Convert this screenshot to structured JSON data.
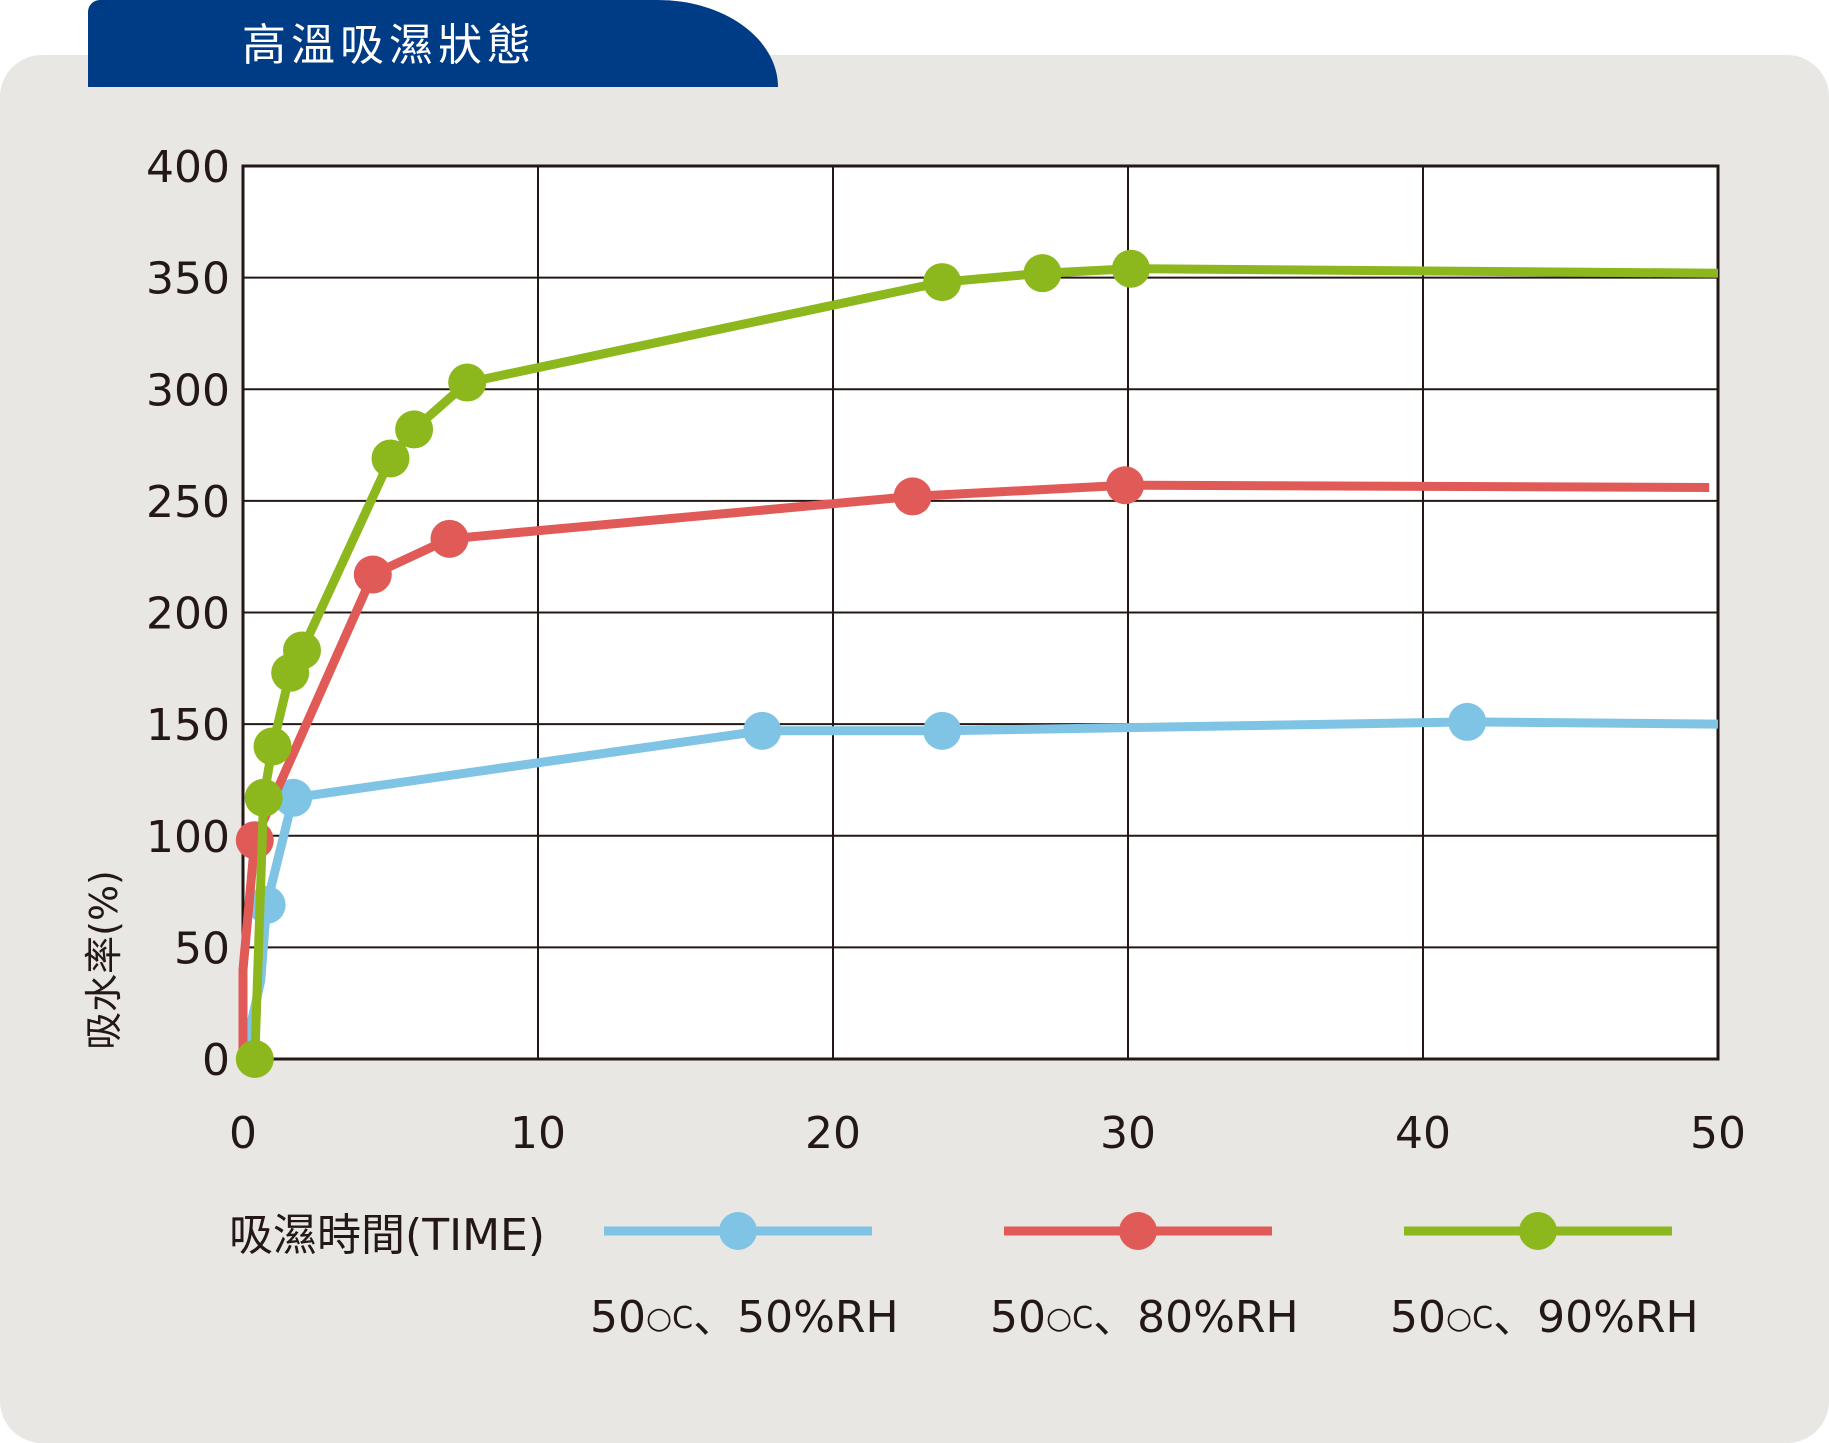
{
  "header": {
    "title": "高溫吸濕狀態"
  },
  "chart_data": {
    "type": "line",
    "title": "高溫吸濕狀態",
    "xlabel": "吸濕時間(TIME)",
    "ylabel": "吸水率(%)",
    "xlim": [
      0,
      50
    ],
    "ylim": [
      0,
      400
    ],
    "x_ticks": [
      "0",
      "10",
      "20",
      "30",
      "40",
      "50"
    ],
    "y_ticks": [
      "0",
      "50",
      "100",
      "150",
      "200",
      "250",
      "300",
      "350",
      "400"
    ],
    "grid": true,
    "legend_position": "bottom",
    "series": [
      {
        "name": "50°C、50%RH",
        "name_parts": [
          "50",
          "○C",
          "、50%RH"
        ],
        "color": "#7fc4e4",
        "points": [
          [
            0.8,
            69
          ],
          [
            1.7,
            117
          ],
          [
            17.6,
            147
          ],
          [
            23.7,
            147
          ],
          [
            41.5,
            151
          ]
        ],
        "line": [
          [
            0.0,
            0
          ],
          [
            0.6,
            35
          ],
          [
            0.8,
            69
          ],
          [
            1.7,
            117
          ],
          [
            17.6,
            147
          ],
          [
            23.7,
            147
          ],
          [
            41.5,
            151
          ],
          [
            50,
            150
          ]
        ]
      },
      {
        "name": "50°C、80%RH",
        "name_parts": [
          "50",
          "○C",
          "、80%RH"
        ],
        "color": "#e05a57",
        "points": [
          [
            0.4,
            98
          ],
          [
            4.4,
            217
          ],
          [
            7.0,
            233
          ],
          [
            22.7,
            252
          ],
          [
            29.9,
            257
          ]
        ],
        "line": [
          [
            0.0,
            0
          ],
          [
            0.0,
            40
          ],
          [
            0.4,
            98
          ],
          [
            4.4,
            217
          ],
          [
            7.0,
            233
          ],
          [
            22.7,
            252
          ],
          [
            29.9,
            257
          ],
          [
            49.7,
            256
          ]
        ]
      },
      {
        "name": "50°C、90%RH",
        "name_parts": [
          "50",
          "○C",
          "、90%RH"
        ],
        "color": "#8cb81e",
        "points": [
          [
            0.4,
            0
          ],
          [
            0.7,
            117
          ],
          [
            1.0,
            140
          ],
          [
            1.6,
            173
          ],
          [
            2.0,
            183
          ],
          [
            5.0,
            269
          ],
          [
            5.8,
            282
          ],
          [
            7.6,
            303
          ],
          [
            23.7,
            348
          ],
          [
            27.1,
            352
          ],
          [
            30.1,
            354
          ]
        ],
        "line": [
          [
            0.4,
            0
          ],
          [
            0.7,
            117
          ],
          [
            1.0,
            140
          ],
          [
            1.6,
            173
          ],
          [
            2.0,
            183
          ],
          [
            5.0,
            269
          ],
          [
            5.8,
            282
          ],
          [
            7.6,
            303
          ],
          [
            23.7,
            348
          ],
          [
            27.1,
            352
          ],
          [
            30.1,
            354
          ],
          [
            50,
            352
          ]
        ]
      }
    ]
  }
}
